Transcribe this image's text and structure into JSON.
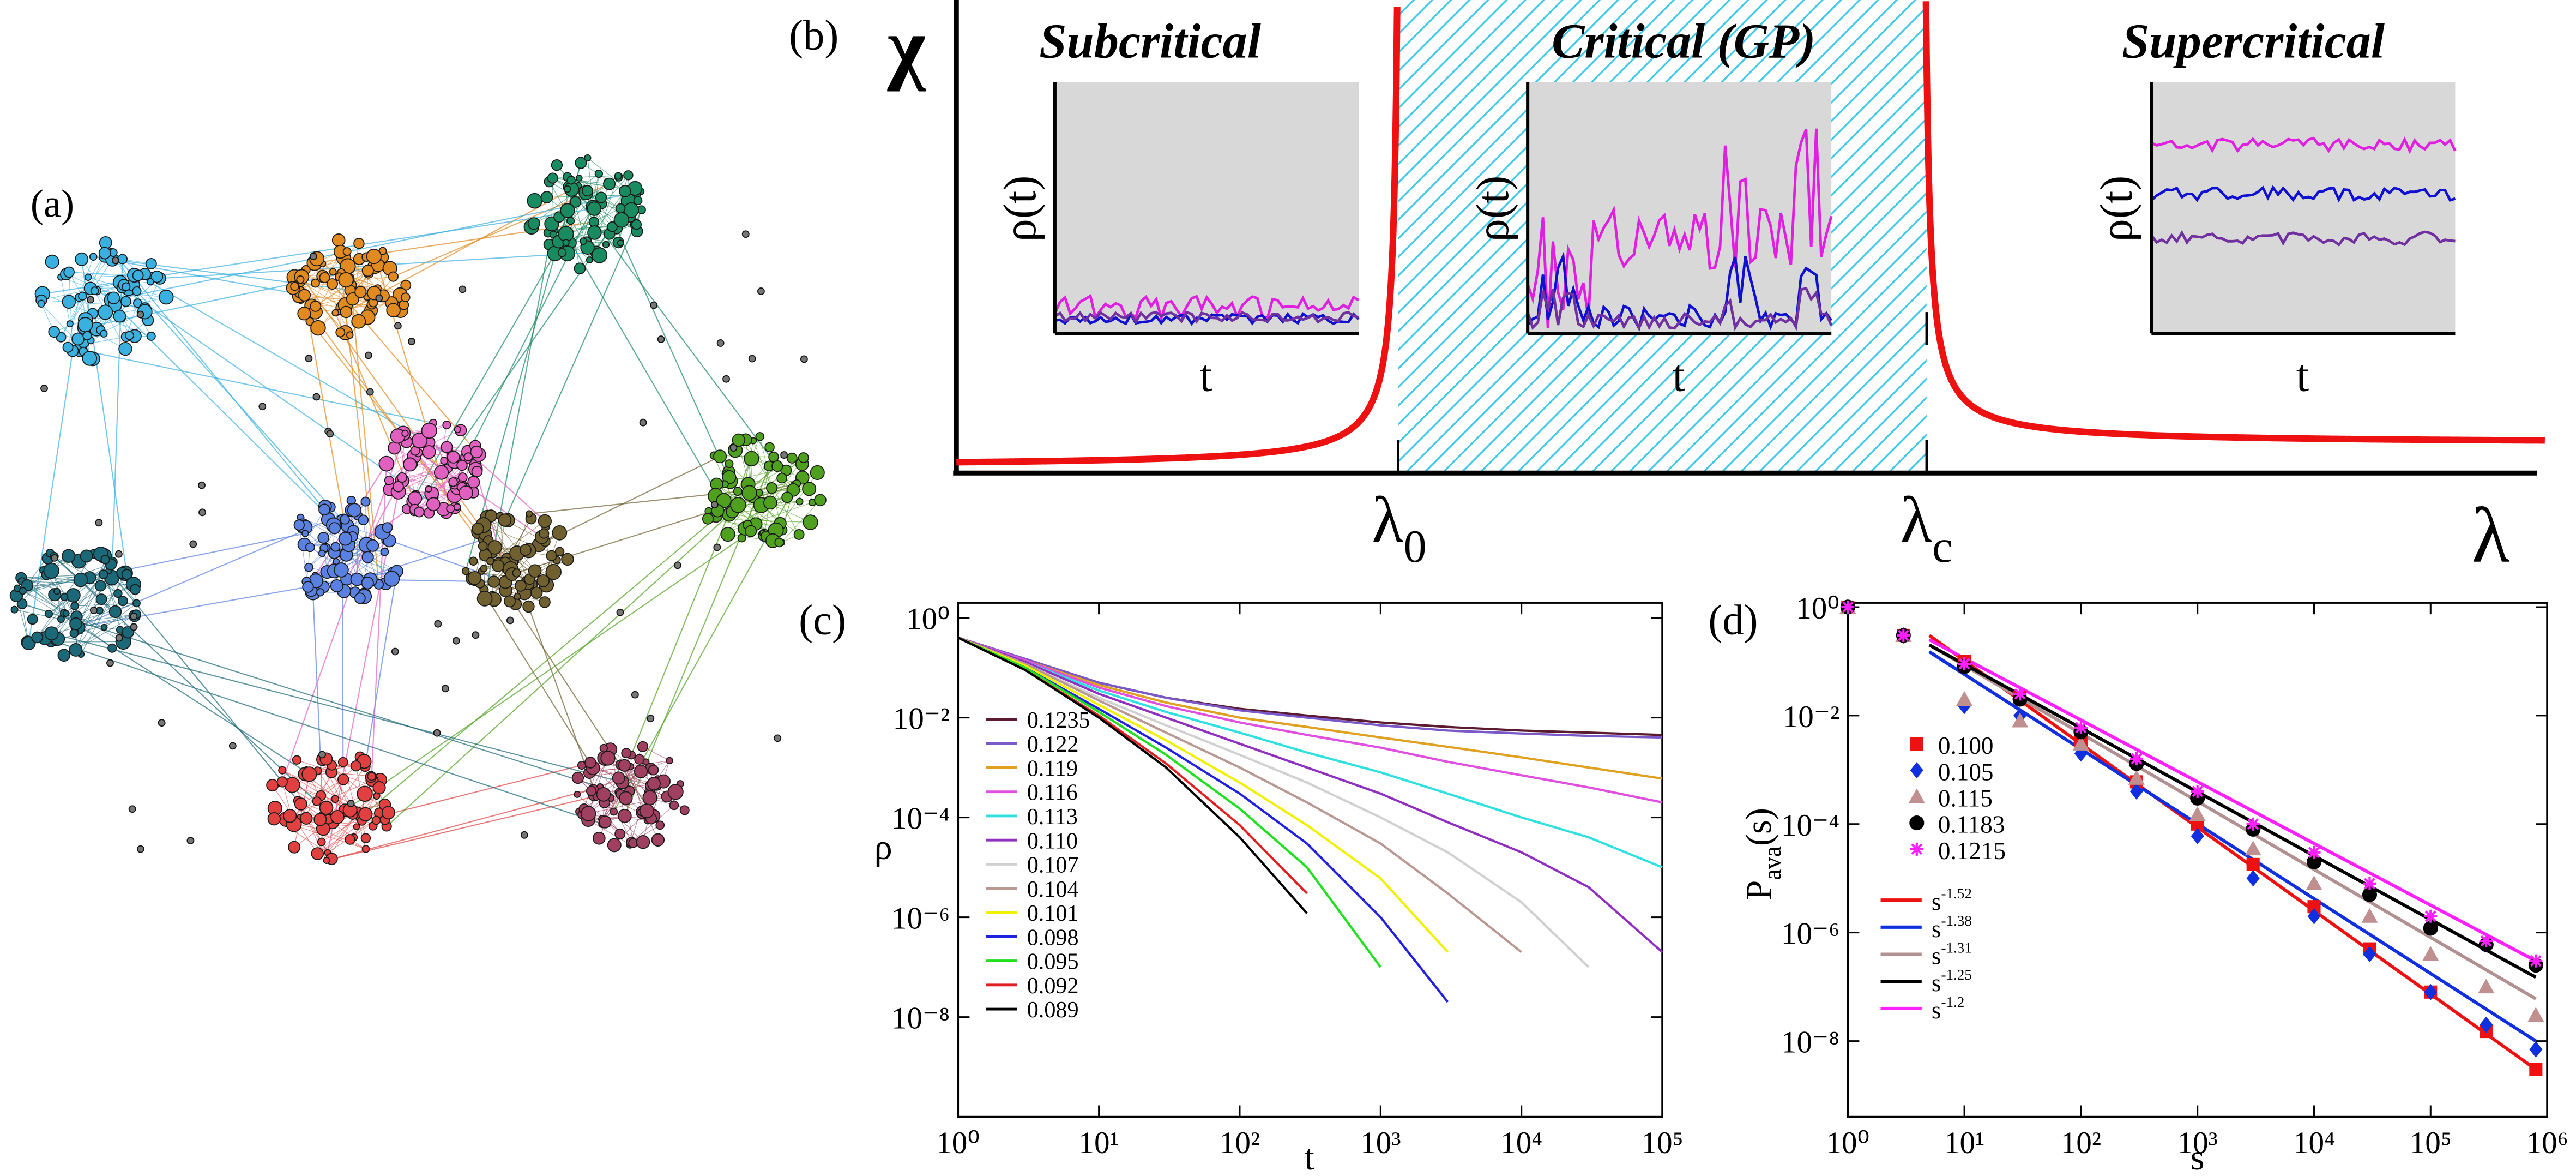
{
  "chart_data": [
    {
      "type": "network",
      "panel_label": "(a)"
    },
    {
      "type": "schematic",
      "panel_label": "(b)",
      "y_label": "χ",
      "x_label": "λ",
      "regions": [
        {
          "title": "Subcritical"
        },
        {
          "title": "Critical (GP)"
        },
        {
          "title": "Supercritical"
        }
      ],
      "inset_y_label": "ρ(t)",
      "inset_x_label": "t",
      "markers": [
        {
          "symbol": "λ",
          "subscript": "0"
        },
        {
          "symbol": "λ",
          "subscript": "c"
        }
      ]
    },
    {
      "type": "line",
      "panel_label": "(c)",
      "x_label": "t",
      "y_label": "ρ",
      "log_x": true,
      "log_y": true,
      "xlim": [
        1,
        100000
      ],
      "ylim": [
        1e-10,
        2
      ],
      "xticks": [
        {
          "value": 1,
          "label": "10⁰"
        },
        {
          "value": 10,
          "label": "10¹"
        },
        {
          "value": 100,
          "label": "10²"
        },
        {
          "value": 1000,
          "label": "10³"
        },
        {
          "value": 10000,
          "label": "10⁴"
        },
        {
          "value": 100000,
          "label": "10⁵"
        }
      ],
      "yticks": [
        {
          "value": 1,
          "label": "10⁰"
        },
        {
          "value": 0.01,
          "label": "10⁻²"
        },
        {
          "value": 0.0001,
          "label": "10⁻⁴"
        },
        {
          "value": 1e-06,
          "label": "10⁻⁶"
        },
        {
          "value": 1e-08,
          "label": "10⁻⁸"
        }
      ],
      "x": [
        1,
        3,
        10,
        30,
        100,
        300,
        1000,
        3000,
        10000,
        30000,
        100000
      ],
      "series": [
        {
          "name": "0.1235",
          "color": "#5a1a30",
          "values": [
            0.4,
            0.15,
            0.05,
            0.025,
            0.015,
            0.011,
            0.008,
            0.0065,
            0.0055,
            0.005,
            0.0045
          ]
        },
        {
          "name": "0.122",
          "color": "#7b58c8",
          "values": [
            0.4,
            0.15,
            0.05,
            0.025,
            0.014,
            0.01,
            0.007,
            0.0055,
            0.0048,
            0.0043,
            0.004
          ]
        },
        {
          "name": "0.119",
          "color": "#e0a020",
          "values": [
            0.4,
            0.14,
            0.045,
            0.02,
            0.01,
            0.0065,
            0.004,
            0.0026,
            0.0016,
            0.001,
            0.0006
          ]
        },
        {
          "name": "0.116",
          "color": "#e050e0",
          "values": [
            0.4,
            0.14,
            0.04,
            0.017,
            0.008,
            0.0045,
            0.0025,
            0.0013,
            0.0007,
            0.0004,
            0.0002
          ]
        },
        {
          "name": "0.113",
          "color": "#30e0e0",
          "values": [
            0.4,
            0.13,
            0.035,
            0.013,
            0.005,
            0.002,
            0.0008,
            0.0003,
            0.0001,
            4e-05,
            1e-05
          ]
        },
        {
          "name": "0.110",
          "color": "#9030c0",
          "values": [
            0.4,
            0.13,
            0.03,
            0.01,
            0.003,
            0.001,
            0.0003,
            8e-05,
            2e-05,
            4e-06,
            2e-07
          ]
        },
        {
          "name": "0.107",
          "color": "#d0d0d0",
          "values": [
            0.4,
            0.12,
            0.025,
            0.007,
            0.0018,
            0.0005,
            0.0001,
            2e-05,
            2e-06,
            1e-07,
            null
          ]
        },
        {
          "name": "0.104",
          "color": "#b89890",
          "values": [
            0.4,
            0.12,
            0.022,
            0.005,
            0.001,
            0.0002,
            3e-05,
            3e-06,
            2e-07,
            null,
            null
          ]
        },
        {
          "name": "0.101",
          "color": "#f0f000",
          "values": [
            0.4,
            0.11,
            0.018,
            0.0035,
            0.0005,
            7e-05,
            6e-06,
            2e-07,
            null,
            null,
            null
          ]
        },
        {
          "name": "0.098",
          "color": "#2020e0",
          "values": [
            0.4,
            0.1,
            0.015,
            0.0025,
            0.0003,
            3e-05,
            1e-06,
            2e-08,
            null,
            null,
            null
          ]
        },
        {
          "name": "0.095",
          "color": "#20e020",
          "values": [
            0.4,
            0.1,
            0.013,
            0.0018,
            0.00015,
            1e-05,
            1e-07,
            null,
            null,
            null,
            null
          ]
        },
        {
          "name": "0.092",
          "color": "#e02020",
          "values": [
            0.4,
            0.09,
            0.011,
            0.0012,
            7e-05,
            3e-06,
            null,
            null,
            null,
            null,
            null
          ]
        },
        {
          "name": "0.089",
          "color": "#000000",
          "values": [
            0.4,
            0.09,
            0.01,
            0.001,
            4e-05,
            1.2e-06,
            null,
            null,
            null,
            null,
            null
          ]
        }
      ]
    },
    {
      "type": "scatter",
      "panel_label": "(d)",
      "x_label": "s",
      "y_label": [
        "P",
        "ava",
        "(s)"
      ],
      "log_x": true,
      "log_y": true,
      "xlim": [
        1,
        1000000
      ],
      "ylim": [
        4e-10,
        1.2
      ],
      "xticks": [
        {
          "value": 1,
          "label": "10⁰"
        },
        {
          "value": 10,
          "label": "10¹"
        },
        {
          "value": 100,
          "label": "10²"
        },
        {
          "value": 1000,
          "label": "10³"
        },
        {
          "value": 10000,
          "label": "10⁴"
        },
        {
          "value": 100000,
          "label": "10⁵"
        },
        {
          "value": 1000000,
          "label": "10⁶"
        }
      ],
      "yticks": [
        {
          "value": 1,
          "label": "10⁰"
        },
        {
          "value": 0.01,
          "label": "10⁻²"
        },
        {
          "value": 0.0001,
          "label": "10⁻⁴"
        },
        {
          "value": 1e-06,
          "label": "10⁻⁶"
        },
        {
          "value": 1e-08,
          "label": "10⁻⁸"
        }
      ],
      "series": [
        {
          "name": "0.100",
          "color": "#ee1111",
          "marker": "square",
          "x": [
            1,
            3,
            10,
            30,
            100,
            300,
            1000,
            3000,
            10000,
            30000,
            100000,
            300000,
            800000
          ],
          "values": [
            1,
            0.3,
            0.1,
            0.022,
            0.0035,
            0.0006,
            0.0001,
            1.8e-05,
            3e-06,
            5e-07,
            8e-08,
            1.5e-08,
            3e-09
          ]
        },
        {
          "name": "0.105",
          "color": "#1030e0",
          "marker": "diamond",
          "x": [
            1,
            3,
            10,
            30,
            100,
            300,
            1000,
            3000,
            10000,
            30000,
            100000,
            300000,
            800000
          ],
          "values": [
            1,
            0.3,
            0.015,
            0.01,
            0.002,
            0.0004,
            6e-05,
            1e-05,
            2e-06,
            4e-07,
            8e-08,
            2e-08,
            7e-09
          ]
        },
        {
          "name": "0.115",
          "color": "#c09090",
          "marker": "triangle",
          "x": [
            1,
            3,
            10,
            30,
            100,
            300,
            1000,
            3000,
            10000,
            30000,
            100000,
            300000,
            800000
          ],
          "values": [
            1,
            0.3,
            0.02,
            0.008,
            0.003,
            0.0007,
            0.00015,
            3.5e-05,
            8e-06,
            2e-06,
            4e-07,
            1e-07,
            3e-08
          ]
        },
        {
          "name": "0.1183",
          "color": "#000000",
          "marker": "circle",
          "x": [
            1,
            3,
            10,
            30,
            100,
            300,
            1000,
            3000,
            10000,
            30000,
            100000,
            300000,
            800000
          ],
          "values": [
            1,
            0.3,
            0.08,
            0.02,
            0.005,
            0.0013,
            0.0003,
            8e-05,
            2e-05,
            5e-06,
            1.2e-06,
            6e-07,
            2.5e-07
          ]
        },
        {
          "name": "0.1215",
          "color": "#ff20ff",
          "marker": "asterisk",
          "x": [
            1,
            3,
            10,
            30,
            100,
            300,
            1000,
            3000,
            10000,
            30000,
            100000,
            300000,
            800000
          ],
          "values": [
            1,
            0.3,
            0.09,
            0.025,
            0.006,
            0.0016,
            0.0004,
            0.0001,
            3e-05,
            8e-06,
            2e-06,
            7e-07,
            3e-07
          ]
        }
      ],
      "fits": [
        {
          "name": "s",
          "exponent": -1.52,
          "color": "#ee1111",
          "x": [
            5,
            800000
          ],
          "values": [
            0.3,
            3e-09
          ]
        },
        {
          "name": "s",
          "exponent": -1.38,
          "color": "#1030e0",
          "x": [
            5,
            800000
          ],
          "values": [
            0.15,
            1e-08
          ]
        },
        {
          "name": "s",
          "exponent": -1.31,
          "color": "#b09090",
          "x": [
            5,
            800000
          ],
          "values": [
            0.2,
            6e-08
          ]
        },
        {
          "name": "s",
          "exponent": -1.25,
          "color": "#000000",
          "x": [
            5,
            800000
          ],
          "values": [
            0.2,
            1.5e-07
          ]
        },
        {
          "name": "s",
          "exponent": -1.2,
          "color": "#ff20ff",
          "x": [
            5,
            800000
          ],
          "values": [
            0.25,
            3e-07
          ]
        }
      ]
    }
  ]
}
